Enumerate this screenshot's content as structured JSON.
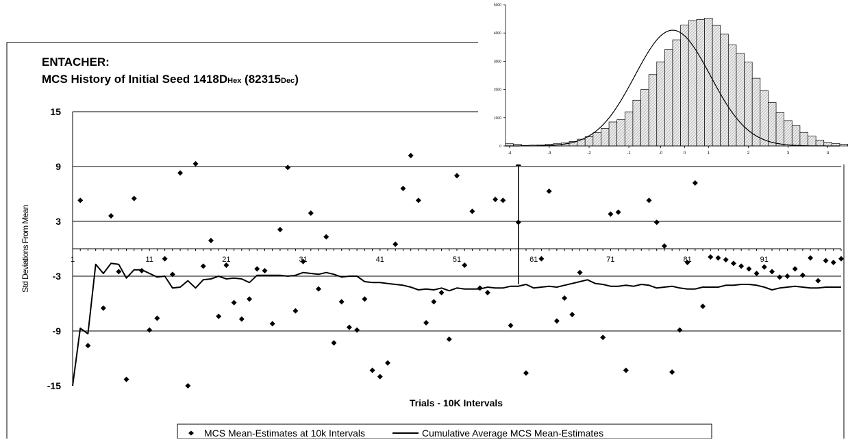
{
  "chart_data": [
    {
      "type": "scatter",
      "title_line1": "ENTACHER:",
      "title_line2_prefix": "MCS History of Initial Seed 1418D",
      "title_line2_hex_sub": "Hex",
      "title_line2_mid": " (82315",
      "title_line2_dec_sub": "Dec",
      "title_line2_end": ")",
      "xlabel": "Trials - 10K Intervals",
      "ylabel": "Std Deviations From Mean",
      "ylim": [
        -15,
        15
      ],
      "xlim": [
        1,
        101
      ],
      "y_ticks": [
        "15",
        "9",
        "3",
        "-3",
        "-9",
        "-15"
      ],
      "x_ticks": [
        "1",
        "11",
        "21",
        "31",
        "41",
        "51",
        "61",
        "71",
        "81",
        "91"
      ],
      "grid": true,
      "legend_position": "bottom",
      "series": [
        {
          "name": "MCS Mean-Estimates at 10k Intervals",
          "marker": "diamond",
          "x": [
            2,
            3,
            5,
            6,
            7,
            8,
            9,
            10,
            11,
            12,
            13,
            14,
            15,
            16,
            17,
            18,
            19,
            20,
            21,
            22,
            23,
            24,
            25,
            26,
            27,
            28,
            29,
            30,
            31,
            32,
            33,
            34,
            35,
            36,
            37,
            38,
            39,
            40,
            41,
            42,
            43,
            44,
            45,
            46,
            47,
            48,
            49,
            50,
            51,
            52,
            53,
            54,
            55,
            56,
            57,
            58,
            59,
            60,
            62,
            63,
            64,
            65,
            66,
            67,
            70,
            71,
            72,
            73,
            76,
            77,
            78,
            79,
            80,
            81,
            82,
            83,
            84,
            85,
            86,
            87,
            88,
            89,
            90,
            91,
            92,
            93,
            94,
            95,
            96,
            97,
            98,
            99,
            100,
            101
          ],
          "y": [
            5.3,
            -10.6,
            -6.5,
            3.6,
            -2.5,
            -14.3,
            5.5,
            -2.4,
            -8.9,
            -7.6,
            -1.1,
            -2.8,
            8.3,
            -15.0,
            9.3,
            -1.9,
            0.9,
            -7.4,
            -1.8,
            -5.9,
            -7.7,
            -5.5,
            -2.2,
            -2.4,
            -8.2,
            2.1,
            8.9,
            -6.8,
            -1.4,
            3.9,
            -4.4,
            1.3,
            -10.3,
            -5.8,
            -8.6,
            -8.9,
            -5.5,
            -13.3,
            -14.0,
            -12.5,
            0.5,
            6.6,
            10.2,
            5.3,
            -8.1,
            -5.8,
            -4.8,
            -9.9,
            8.0,
            -1.8,
            4.1,
            -4.3,
            -4.8,
            5.4,
            5.3,
            -8.4,
            2.9,
            -13.6,
            -1.1,
            6.3,
            -7.9,
            -5.4,
            -7.2,
            -2.6,
            -9.7,
            3.8,
            4.0,
            -13.3,
            5.3,
            2.9,
            0.3,
            -13.5,
            -8.9,
            -1.5,
            7.2,
            -6.3,
            -0.9,
            -1.0,
            -1.2,
            -1.6,
            -1.9,
            -2.2,
            -2.7,
            -2.0,
            -2.5,
            -3.1,
            -3.0,
            -2.2,
            -2.9,
            -1.0,
            -3.5,
            -1.3,
            -1.5,
            -1.1
          ]
        },
        {
          "name": "Cumulative Average MCS Mean-Estimates",
          "marker": "line",
          "x": [
            1,
            2,
            3,
            4,
            5,
            6,
            7,
            8,
            9,
            10,
            11,
            12,
            13,
            14,
            15,
            16,
            17,
            18,
            19,
            20,
            21,
            22,
            23,
            24,
            25,
            26,
            27,
            28,
            29,
            30,
            31,
            32,
            33,
            34,
            35,
            36,
            37,
            38,
            39,
            40,
            41,
            42,
            43,
            44,
            45,
            46,
            47,
            48,
            49,
            50,
            51,
            52,
            53,
            54,
            55,
            56,
            57,
            58,
            59,
            60,
            61,
            62,
            63,
            64,
            65,
            66,
            67,
            68,
            69,
            70,
            71,
            72,
            73,
            74,
            75,
            76,
            77,
            78,
            79,
            80,
            81,
            82,
            83,
            84,
            85,
            86,
            87,
            88,
            89,
            90,
            91,
            92,
            93,
            94,
            95,
            96,
            97,
            98,
            99,
            100,
            101
          ],
          "y": [
            -15.0,
            -8.7,
            -9.3,
            -1.7,
            -2.7,
            -1.6,
            -1.7,
            -3.2,
            -2.3,
            -2.3,
            -2.7,
            -3.1,
            -3.0,
            -4.3,
            -4.2,
            -3.5,
            -4.3,
            -3.4,
            -3.3,
            -3.0,
            -3.3,
            -3.2,
            -3.3,
            -3.7,
            -2.9,
            -2.9,
            -2.9,
            -2.9,
            -3.0,
            -2.9,
            -2.6,
            -2.7,
            -2.8,
            -2.6,
            -2.8,
            -3.1,
            -3.0,
            -3.0,
            -3.6,
            -3.7,
            -3.7,
            -3.8,
            -3.9,
            -4.0,
            -4.2,
            -4.5,
            -4.4,
            -4.5,
            -4.3,
            -4.6,
            -4.3,
            -4.4,
            -4.4,
            -4.4,
            -4.2,
            -4.3,
            -4.3,
            -4.1,
            -4.1,
            -3.9,
            -4.3,
            -4.2,
            -4.1,
            -4.2,
            -4.0,
            -3.8,
            -3.6,
            -3.4,
            -3.8,
            -3.9,
            -4.1,
            -4.1,
            -4.0,
            -4.1,
            -3.9,
            -4.0,
            -4.3,
            -4.2,
            -4.1,
            -4.3,
            -4.4,
            -4.4,
            -4.2,
            -4.2,
            -4.2,
            -4.0,
            -4.0,
            -3.9,
            -3.9,
            -4.0,
            -4.2,
            -4.5,
            -4.3,
            -4.2,
            -4.1,
            -4.2,
            -4.3,
            -4.3,
            -4.2,
            -4.2,
            -4.2
          ]
        }
      ],
      "annotation_arrow": {
        "x": 59,
        "y_from": -3.9,
        "y_to": 10.0
      }
    },
    {
      "type": "bar",
      "xlim": [
        -4.1,
        4.3
      ],
      "ylim": [
        0,
        5000
      ],
      "x_ticks": [
        "-4",
        "-3",
        "-2",
        "-1",
        "-0",
        "0",
        "1",
        "2",
        "3",
        "4"
      ],
      "x_tick_values": [
        -4,
        -3,
        -2,
        -1,
        -0.2,
        0.4,
        1,
        2,
        3,
        4
      ],
      "y_ticks": [
        "0",
        "1000",
        "2000",
        "3000",
        "4000",
        "5000"
      ],
      "bin_start": -4.1,
      "bin_width": 0.2,
      "values": [
        80,
        60,
        20,
        30,
        40,
        60,
        80,
        110,
        160,
        240,
        330,
        470,
        620,
        850,
        930,
        1210,
        1620,
        2000,
        2530,
        2980,
        3410,
        3760,
        4280,
        4440,
        4480,
        4530,
        4270,
        3960,
        3580,
        3280,
        2970,
        2400,
        1960,
        1540,
        1180,
        900,
        720,
        480,
        350,
        210,
        130,
        90,
        60,
        40,
        20,
        40
      ],
      "curve": {
        "type": "normal",
        "peak": 4100,
        "mean": 0.1,
        "sd": 0.95
      }
    }
  ]
}
